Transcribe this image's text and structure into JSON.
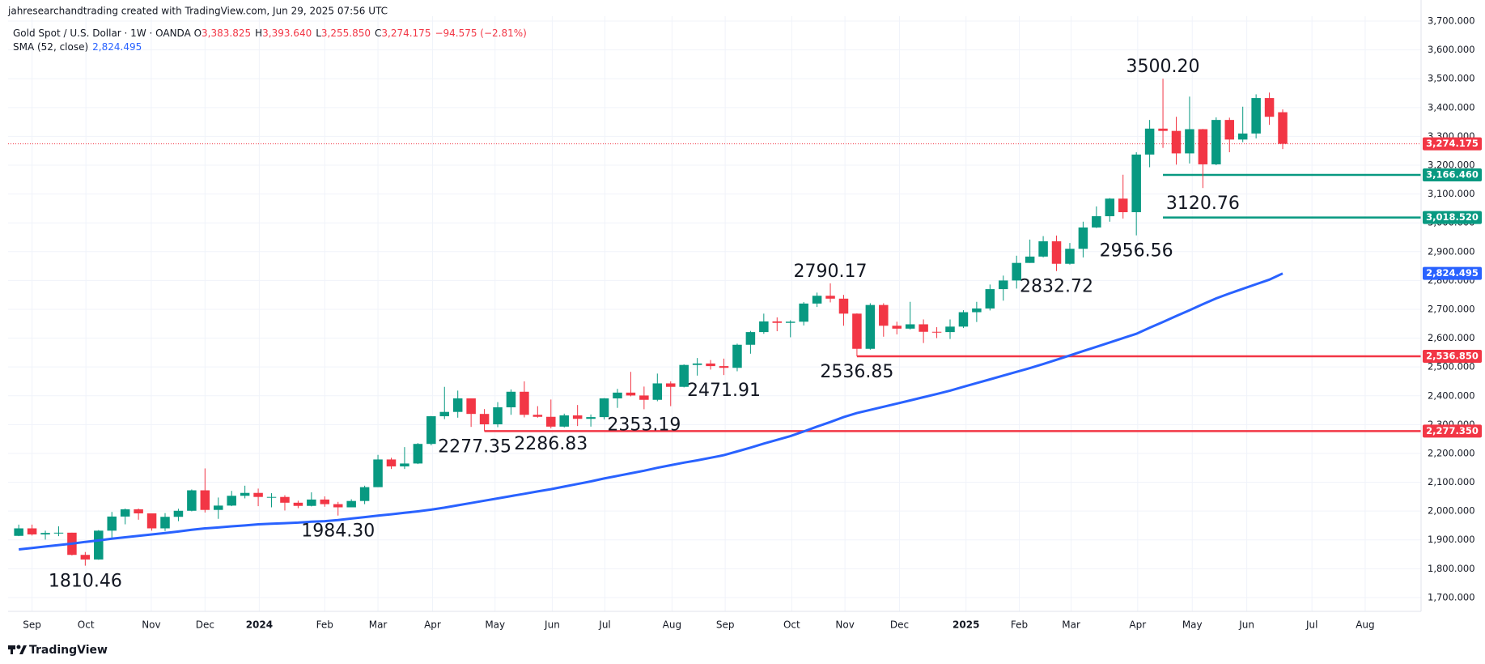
{
  "chart_data": {
    "type": "candlestick",
    "header": "jahresearchandtrading created with TradingView.com, Jun 29, 2025 07:56 UTC",
    "legend": {
      "symbol": "Gold Spot / U.S. Dollar · 1W · OANDA",
      "fields": [
        {
          "key": "O",
          "value": {
            "value": 3383.825,
            "label": "3,383.825"
          }
        },
        {
          "key": "H",
          "value": {
            "value": 3393.64,
            "label": "3,393.640"
          }
        },
        {
          "key": "L",
          "value": {
            "value": 3255.85,
            "label": "3,255.850"
          }
        },
        {
          "key": "C",
          "value": {
            "value": 3274.175,
            "label": "3,274.175"
          }
        }
      ],
      "change": "−94.575 (−2.81%)"
    },
    "brand": "TradingView",
    "up_color": "#089981",
    "down_color": "#f23645",
    "categories": [
      null,
      null,
      null,
      null,
      null,
      null,
      null,
      null,
      null,
      null,
      null,
      null,
      null,
      null,
      null,
      null,
      null,
      null,
      null,
      null,
      null,
      null,
      null,
      null,
      null,
      null,
      null,
      null,
      null,
      null,
      null,
      null,
      null,
      null,
      null,
      null,
      null,
      null,
      null,
      null,
      null,
      null,
      null,
      null,
      null,
      null,
      null,
      null,
      null,
      null,
      null,
      null,
      null,
      null,
      null,
      null,
      null,
      null,
      null,
      null,
      null,
      null,
      null,
      null,
      null,
      null,
      null,
      null,
      null,
      null,
      null,
      null,
      null,
      null,
      null,
      null,
      null,
      null,
      null,
      null,
      null,
      null,
      null,
      null,
      null,
      null,
      null,
      null,
      null,
      null,
      null,
      null,
      null,
      null,
      null,
      null
    ],
    "open": [
      1914,
      1940,
      1919,
      1924,
      1925,
      1848,
      1832,
      1932,
      1981,
      2006,
      1992,
      1940,
      1980,
      2001,
      2072,
      2004,
      2019,
      2053,
      2063,
      2049,
      2049,
      2029,
      2018,
      2040,
      2024,
      2013,
      2035,
      2083,
      2179,
      2155,
      2165,
      2233,
      2329,
      2344,
      2391,
      2337,
      2301,
      2360,
      2414,
      2334,
      2327,
      2293,
      2332,
      2320,
      2326,
      2391,
      2411,
      2401,
      2386,
      2443,
      2431,
      2507,
      2512,
      2503,
      2497,
      2577,
      2621,
      2658,
      2653,
      2657,
      2720,
      2747,
      2737,
      2685,
      2563,
      2715,
      2643,
      2633,
      2648,
      2622,
      2621,
      2640,
      2690,
      2703,
      2770,
      2800,
      2861,
      2883,
      2936,
      2858,
      2910,
      2984,
      3023,
      3084,
      3037,
      3237,
      3327,
      3319,
      3241,
      3325,
      3203,
      3357,
      3289,
      3310,
      3433,
      3383.825
    ],
    "high": [
      1953,
      1953,
      1932,
      1947,
      1925,
      1858,
      1934,
      1997,
      2009,
      2009,
      1992,
      1993,
      2008,
      2075,
      2148,
      2047,
      2070,
      2088,
      2078,
      2062,
      2055,
      2036,
      2065,
      2051,
      2032,
      2041,
      2088,
      2195,
      2185,
      2222,
      2236,
      2330,
      2431,
      2418,
      2391,
      2354,
      2378,
      2422,
      2450,
      2364,
      2387,
      2338,
      2368,
      2335,
      2392,
      2424,
      2483,
      2432,
      2477,
      2450,
      2509,
      2531,
      2524,
      2529,
      2581,
      2625,
      2685,
      2672,
      2662,
      2725,
      2758,
      2790.17,
      2750,
      2686,
      2721,
      2721,
      2657,
      2726,
      2665,
      2638,
      2665,
      2697,
      2726,
      2786,
      2817,
      2886,
      2942,
      2954,
      2956,
      2930,
      3004,
      3057,
      3086,
      3167,
      3245,
      3357,
      3500.2,
      3368,
      3438,
      3326,
      3366,
      3365,
      3403,
      3446,
      3452,
      3393.64
    ],
    "low": [
      1913,
      1915,
      1901,
      1913,
      1846,
      1810.46,
      1831,
      1908,
      1954,
      1970,
      1932,
      1931,
      1965,
      1999,
      1995,
      1973,
      2017,
      2044,
      2017,
      2013,
      2002,
      2010,
      2016,
      2015,
      1984.3,
      2013,
      2024,
      2083,
      2146,
      2146,
      2163,
      2228,
      2319,
      2324,
      2292,
      2277.35,
      2291,
      2334,
      2325,
      2324,
      2286.83,
      2290,
      2295,
      2293,
      2318,
      2358,
      2398,
      2353.19,
      2381,
      2364,
      2429,
      2470,
      2491,
      2471.91,
      2485,
      2546,
      2615,
      2624,
      2603,
      2644,
      2708,
      2724,
      2643,
      2536.85,
      2560,
      2605,
      2613,
      2630,
      2583,
      2600,
      2597,
      2635,
      2656,
      2696,
      2730,
      2772,
      2861,
      2880,
      2832.72,
      2855,
      2880,
      2982,
      3004,
      3015,
      2956.56,
      3193,
      3260,
      3202,
      3206,
      3120.76,
      3200,
      3245,
      3280,
      3293,
      3340,
      3255.85
    ],
    "close": [
      1940,
      1919,
      1924,
      1925,
      1848,
      1832,
      1932,
      1981,
      2006,
      1992,
      1940,
      1980,
      2001,
      2072,
      2004,
      2019,
      2053,
      2063,
      2049,
      2049,
      2029,
      2018,
      2040,
      2024,
      2013,
      2035,
      2083,
      2179,
      2155,
      2165,
      2233,
      2329,
      2344,
      2391,
      2337,
      2301,
      2360,
      2414,
      2334,
      2327,
      2293,
      2332,
      2320,
      2326,
      2391,
      2411,
      2401,
      2386,
      2443,
      2431,
      2507,
      2512,
      2503,
      2497,
      2577,
      2621,
      2658,
      2653,
      2657,
      2720,
      2747,
      2737,
      2685,
      2563,
      2715,
      2643,
      2633,
      2648,
      2622,
      2621,
      2640,
      2690,
      2703,
      2770,
      2800,
      2861,
      2883,
      2936,
      2858,
      2910,
      2984,
      3023,
      3084,
      3037,
      3237,
      3327,
      3319,
      3241,
      3325,
      3203,
      3357,
      3289,
      3310,
      3433,
      3368,
      3274.175
    ],
    "sma": {
      "name": "SMA (52, close)",
      "color": "#2962ff",
      "last": {
        "value": 2824.495,
        "label": "2,824.495"
      },
      "values": [
        1867,
        1872,
        1877,
        1882,
        1887,
        1893,
        1898,
        1904,
        1909,
        1914,
        1919,
        1924,
        1929,
        1935,
        1940,
        1943,
        1947,
        1950,
        1954,
        1956,
        1958,
        1960,
        1963,
        1965,
        1969,
        1974,
        1979,
        1984,
        1989,
        1994,
        1999,
        2005,
        2012,
        2020,
        2028,
        2036,
        2044,
        2052,
        2060,
        2068,
        2076,
        2085,
        2094,
        2103,
        2113,
        2122,
        2131,
        2140,
        2150,
        2159,
        2168,
        2176,
        2185,
        2194,
        2207,
        2220,
        2234,
        2247,
        2260,
        2276,
        2293,
        2309,
        2326,
        2340,
        2351,
        2362,
        2373,
        2384,
        2395,
        2406,
        2418,
        2431,
        2444,
        2457,
        2470,
        2483,
        2496,
        2510,
        2525,
        2540,
        2555,
        2570,
        2585,
        2600,
        2615,
        2636,
        2656,
        2677,
        2697,
        2718,
        2738,
        2755,
        2771,
        2787,
        2803,
        2824.495
      ]
    },
    "price_lines": [
      {
        "value": 3274.175,
        "label": "3,274.175",
        "color": "#f23645",
        "style": "dotted"
      },
      {
        "value": 3166.46,
        "label": "3,166.460",
        "color": "#089981",
        "style": "solid"
      },
      {
        "value": 3018.52,
        "label": "3,018.520",
        "color": "#089981",
        "style": "solid"
      },
      {
        "value": 2536.85,
        "label": "2,536.850",
        "color": "#f23645",
        "style": "solid"
      },
      {
        "value": 2277.35,
        "label": "2,277.350",
        "color": "#f23645",
        "style": "solid"
      }
    ],
    "annotations": [
      {
        "value": 3500.2,
        "label": "3500.20"
      },
      {
        "value": 3120.76,
        "label": "3120.76"
      },
      {
        "value": 2956.56,
        "label": "2956.56"
      },
      {
        "value": 2832.72,
        "label": "2832.72"
      },
      {
        "value": 2790.17,
        "label": "2790.17"
      },
      {
        "value": 2536.85,
        "label": "2536.85"
      },
      {
        "value": 2471.91,
        "label": "2471.91"
      },
      {
        "value": 2353.19,
        "label": "2353.19"
      },
      {
        "value": 2277.35,
        "label": "2277.35"
      },
      {
        "value": 2286.83,
        "label": "2286.83"
      },
      {
        "value": 1984.3,
        "label": "1984.30"
      },
      {
        "value": 1810.46,
        "label": "1810.46"
      }
    ],
    "ylim": [
      1652,
      3717
    ],
    "yticks": [
      {
        "value": 1700,
        "label": "1,700.000"
      },
      {
        "value": 1800,
        "label": "1,800.000"
      },
      {
        "value": 1900,
        "label": "1,900.000"
      },
      {
        "value": 2000,
        "label": "2,000.000"
      },
      {
        "value": 2100,
        "label": "2,100.000"
      },
      {
        "value": 2200,
        "label": "2,200.000"
      },
      {
        "value": 2300,
        "label": "2,300.000"
      },
      {
        "value": 2400,
        "label": "2,400.000"
      },
      {
        "value": 2500,
        "label": "2,500.000"
      },
      {
        "value": 2600,
        "label": "2,600.000"
      },
      {
        "value": 2700,
        "label": "2,700.000"
      },
      {
        "value": 2800,
        "label": "2,800.000"
      },
      {
        "value": 2900,
        "label": "2,900.000"
      },
      {
        "value": 3000,
        "label": "3,000.000"
      },
      {
        "value": 3100,
        "label": "3,100.000"
      },
      {
        "value": 3200,
        "label": "3,200.000"
      },
      {
        "value": 3300,
        "label": "3,300.000"
      },
      {
        "value": 3400,
        "label": "3,400.000"
      },
      {
        "value": 3500,
        "label": "3,500.000"
      },
      {
        "value": 3600,
        "label": "3,600.000"
      },
      {
        "value": 3700,
        "label": "3,700.000"
      }
    ],
    "xlim": [
      -0.8,
      105.4
    ],
    "xticks": [
      {
        "value": 1.0,
        "label": "Sep"
      },
      {
        "value": 5.05,
        "label": "Oct"
      },
      {
        "value": 9.96,
        "label": "Nov"
      },
      {
        "value": 14.0,
        "label": "Dec"
      },
      {
        "value": 18.08,
        "label": "2024"
      },
      {
        "value": 23.0,
        "label": "Feb"
      },
      {
        "value": 27.0,
        "label": "Mar"
      },
      {
        "value": 31.1,
        "label": "Apr"
      },
      {
        "value": 35.8,
        "label": "May"
      },
      {
        "value": 40.1,
        "label": "Jun"
      },
      {
        "value": 44.06,
        "label": "Jul"
      },
      {
        "value": 49.1,
        "label": "Aug"
      },
      {
        "value": 53.1,
        "label": "Sep"
      },
      {
        "value": 58.1,
        "label": "Oct"
      },
      {
        "value": 62.1,
        "label": "Nov"
      },
      {
        "value": 66.2,
        "label": "Dec"
      },
      {
        "value": 71.2,
        "label": "2025"
      },
      {
        "value": 75.2,
        "label": "Feb"
      },
      {
        "value": 79.1,
        "label": "Mar"
      },
      {
        "value": 84.1,
        "label": "Apr"
      },
      {
        "value": 88.2,
        "label": "May"
      },
      {
        "value": 92.3,
        "label": "Jun"
      },
      {
        "value": 97.2,
        "label": "Jul"
      },
      {
        "value": 101.2,
        "label": "Aug"
      }
    ],
    "grid": true
  }
}
